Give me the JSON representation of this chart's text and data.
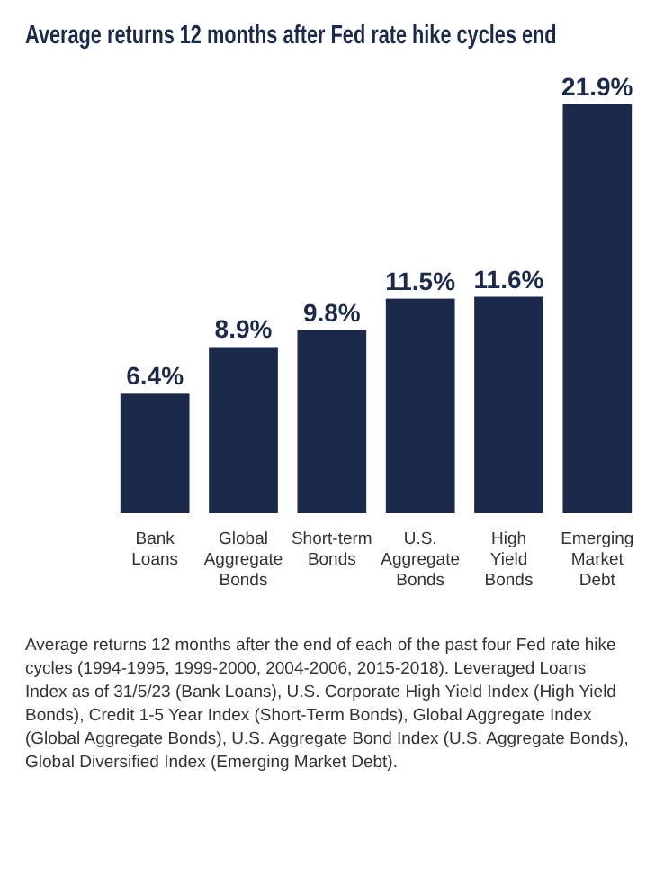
{
  "chart_data": {
    "type": "bar",
    "title": "Average returns 12 months after Fed rate hike cycles end",
    "categories": [
      "Bank Loans",
      "Global Aggregate Bonds",
      "Short-term Bonds",
      "U.S. Aggregate Bonds",
      "High Yield Bonds",
      "Emerging Market Debt"
    ],
    "values": [
      6.4,
      8.9,
      9.8,
      11.5,
      11.6,
      21.9
    ],
    "value_labels": [
      "6.4%",
      "8.9%",
      "9.8%",
      "11.5%",
      "11.6%",
      "21.9%"
    ],
    "color": "#1b2a4a",
    "annotations": [
      "Average returns 12 months after the end of each of the past four Fed rate hike cycles (1994-1995, 1999-2000, 2004-2006, 2015-2018). Leveraged Loans Index as of 31/5/23 (Bank Loans), U.S. Corporate High Yield Index (High Yield Bonds), Credit 1-5 Year Index (Short-Term Bonds), Global Aggregate Index (Global Aggregate Bonds), U.S. Aggregate Bond Index (U.S. Aggregate Bonds), Global Diversified Index (Emerging Market Debt)."
    ]
  }
}
